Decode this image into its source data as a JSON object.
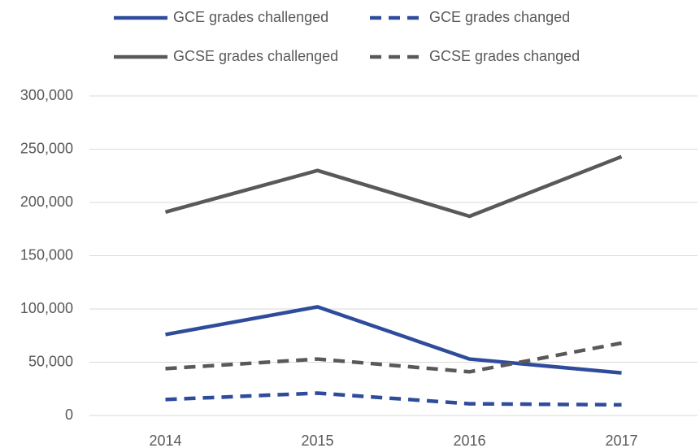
{
  "chart_data": {
    "type": "line",
    "categories": [
      "2014",
      "2015",
      "2016",
      "2017"
    ],
    "series": [
      {
        "name": "GCE grades challenged",
        "color": "#2f4b9c",
        "dashed": false,
        "values": [
          76000,
          102000,
          53000,
          40000
        ]
      },
      {
        "name": "GCE grades changed",
        "color": "#2f4b9c",
        "dashed": true,
        "values": [
          15000,
          21000,
          11000,
          10000
        ]
      },
      {
        "name": "GCSE grades challenged",
        "color": "#595959",
        "dashed": false,
        "values": [
          191000,
          230000,
          187000,
          243000
        ]
      },
      {
        "name": "GCSE grades changed",
        "color": "#595959",
        "dashed": true,
        "values": [
          44000,
          53000,
          41000,
          68000
        ]
      }
    ],
    "ylim": [
      0,
      300000
    ],
    "yticks": [
      {
        "value": 0,
        "label": "0"
      },
      {
        "value": 50000,
        "label": "50,000"
      },
      {
        "value": 100000,
        "label": "100,000"
      },
      {
        "value": 150000,
        "label": "150,000"
      },
      {
        "value": 200000,
        "label": "200,000"
      },
      {
        "value": 250000,
        "label": "250,000"
      },
      {
        "value": 300000,
        "label": "300,000"
      }
    ],
    "grid": true,
    "legend": "top"
  }
}
